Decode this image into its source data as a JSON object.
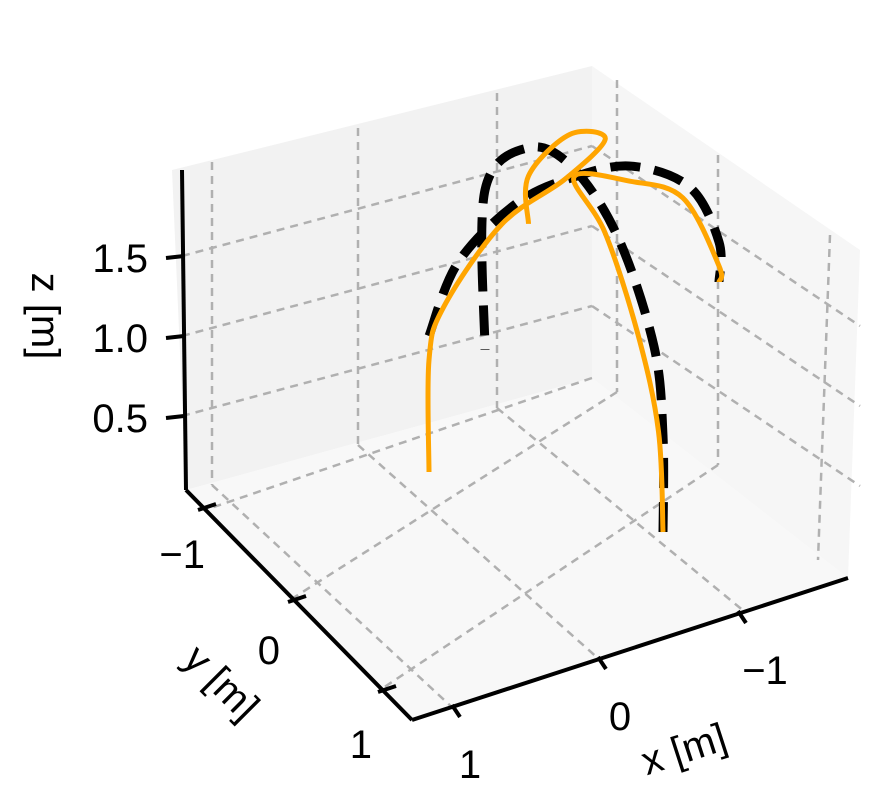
{
  "chart_data": {
    "type": "line",
    "projection": "3d",
    "grid": true,
    "grid_style": "dashed",
    "pane_color": "#f2f2f2",
    "axes": {
      "x": {
        "label": "x [m]",
        "ticks": [
          1,
          0,
          -1
        ],
        "tick_labels": [
          "1",
          "0",
          "−1"
        ],
        "range": [
          1.5,
          -1.5
        ]
      },
      "y": {
        "label": "y [m]",
        "ticks": [
          -1,
          0,
          1
        ],
        "tick_labels": [
          "−1",
          "0",
          "1"
        ],
        "range": [
          -1.5,
          1.5
        ]
      },
      "z": {
        "label": "z [m]",
        "ticks": [
          0.5,
          1.0,
          1.5
        ],
        "tick_labels": [
          "0.5",
          "1.0",
          "1.5"
        ],
        "range": [
          0.1,
          1.9
        ]
      }
    },
    "series": [
      {
        "style": "dashed",
        "color": "#000000",
        "points": [
          {
            "x": 0.0,
            "y": 1.0,
            "z": 0.2
          },
          {
            "x": 0.0,
            "y": 1.0,
            "z": 0.8
          },
          {
            "x": 0.0,
            "y": 0.9,
            "z": 1.3
          },
          {
            "x": 0.0,
            "y": 0.5,
            "z": 1.75
          },
          {
            "x": 0.0,
            "y": 0.0,
            "z": 1.9
          },
          {
            "x": 0.0,
            "y": -0.5,
            "z": 1.75
          },
          {
            "x": 0.0,
            "y": -1.0,
            "z": 1.2
          },
          {
            "x": 0.0,
            "y": -1.0,
            "z": 0.2
          }
        ]
      },
      {
        "style": "dashed",
        "color": "#000000",
        "points": [
          {
            "x": 1.0,
            "y": 0.0,
            "z": 1.15
          },
          {
            "x": 0.8,
            "y": 0.0,
            "z": 1.55
          },
          {
            "x": 0.4,
            "y": 0.0,
            "z": 1.8
          },
          {
            "x": 0.0,
            "y": 0.0,
            "z": 1.85
          },
          {
            "x": -0.4,
            "y": 0.0,
            "z": 1.8
          },
          {
            "x": -0.8,
            "y": 0.0,
            "z": 1.55
          },
          {
            "x": -1.0,
            "y": 0.0,
            "z": 1.15
          },
          {
            "x": -1.0,
            "y": 0.0,
            "z": 0.9
          }
        ]
      },
      {
        "style": "solid",
        "color": "#ffa500",
        "points": [
          {
            "x": 0.0,
            "y": 1.0,
            "z": 0.2
          },
          {
            "x": 0.0,
            "y": 0.95,
            "z": 0.8
          },
          {
            "x": 0.02,
            "y": 0.75,
            "z": 1.3
          },
          {
            "x": 0.0,
            "y": 0.35,
            "z": 1.7
          },
          {
            "x": 0.0,
            "y": 0.0,
            "z": 1.85
          },
          {
            "x": -0.35,
            "y": 0.05,
            "z": 1.75
          },
          {
            "x": -0.75,
            "y": 0.0,
            "z": 1.5
          },
          {
            "x": -1.0,
            "y": 0.0,
            "z": 1.0
          },
          {
            "x": -1.0,
            "y": 0.0,
            "z": 0.9
          }
        ]
      },
      {
        "style": "solid",
        "color": "#ffa500",
        "points": [
          {
            "x": 1.0,
            "y": 0.0,
            "z": 0.3
          },
          {
            "x": 1.0,
            "y": 0.0,
            "z": 1.0
          },
          {
            "x": 0.9,
            "y": 0.0,
            "z": 1.3
          },
          {
            "x": 0.5,
            "y": 0.0,
            "z": 1.7
          },
          {
            "x": 0.0,
            "y": -0.1,
            "z": 1.78
          },
          {
            "x": -0.4,
            "y": -0.3,
            "z": 1.8
          },
          {
            "x": -0.4,
            "y": -0.7,
            "z": 1.6
          },
          {
            "x": -0.3,
            "y": -1.0,
            "z": 1.2
          },
          {
            "x": -0.3,
            "y": -1.0,
            "z": 0.9
          }
        ]
      }
    ]
  }
}
